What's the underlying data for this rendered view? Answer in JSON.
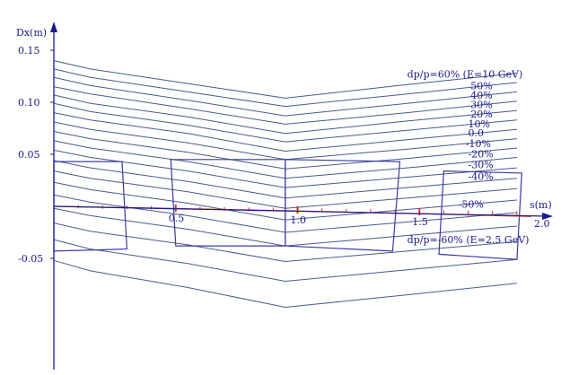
{
  "chart_data": {
    "type": "line",
    "ylabel": "Dx(m)",
    "xlabel": "s(m)",
    "xlim": [
      0,
      2.0
    ],
    "ylim": [
      -0.115,
      0.17
    ],
    "x_ticks": [
      0.5,
      1.0,
      1.5,
      2.0
    ],
    "x_tick_labels": [
      "0.5",
      "1.0",
      "1.5",
      "2.0"
    ],
    "y_ticks": [
      0.15,
      0.1,
      0.05,
      -0.05
    ],
    "y_tick_labels": [
      "0.15",
      "0.10",
      "0.05",
      "-0.05"
    ],
    "grid": false,
    "colors": {
      "curve": "#4a5a8c",
      "axis": "#1a1a8c",
      "magnet": "#3a3aa0",
      "beam": "#d03030"
    },
    "curve_x": [
      0,
      0.15,
      0.55,
      0.95,
      1.45,
      1.9
    ],
    "series": [
      {
        "name": "dp/p=60%  (E=10 GeV)",
        "values": [
          0.14,
          0.132,
          0.118,
          0.104,
          0.117,
          0.128
        ]
      },
      {
        "values": [
          0.132,
          0.124,
          0.11,
          0.096,
          0.108,
          0.119
        ]
      },
      {
        "values": [
          0.124,
          0.116,
          0.102,
          0.087,
          0.099,
          0.11
        ]
      },
      {
        "values": [
          0.115,
          0.108,
          0.094,
          0.079,
          0.09,
          0.101
        ]
      },
      {
        "values": [
          0.107,
          0.099,
          0.086,
          0.07,
          0.082,
          0.092
        ]
      },
      {
        "values": [
          0.099,
          0.091,
          0.078,
          0.062,
          0.073,
          0.083
        ]
      },
      {
        "values": [
          0.09,
          0.083,
          0.07,
          0.053,
          0.064,
          0.074
        ]
      },
      {
        "values": [
          0.081,
          0.074,
          0.061,
          0.045,
          0.055,
          0.065
        ]
      },
      {
        "values": [
          0.072,
          0.065,
          0.052,
          0.036,
          0.046,
          0.056
        ]
      },
      {
        "values": [
          0.063,
          0.056,
          0.043,
          0.027,
          0.037,
          0.047
        ]
      },
      {
        "values": [
          0.054,
          0.047,
          0.034,
          0.018,
          0.028,
          0.037
        ]
      },
      {
        "values": [
          0.044,
          0.037,
          0.024,
          0.008,
          0.018,
          0.027
        ]
      },
      {
        "values": [
          0.034,
          0.027,
          0.014,
          -0.002,
          0.008,
          0.017
        ]
      },
      {
        "values": [
          0.023,
          0.016,
          0.003,
          -0.013,
          -0.003,
          0.006
        ]
      },
      {
        "values": [
          0.011,
          0.004,
          -0.009,
          -0.025,
          -0.015,
          -0.006
        ]
      },
      {
        "values": [
          -0.002,
          -0.009,
          -0.022,
          -0.038,
          -0.028,
          -0.019
        ]
      },
      {
        "values": [
          -0.016,
          -0.024,
          -0.037,
          -0.053,
          -0.043,
          -0.034
        ]
      },
      {
        "values": [
          -0.032,
          -0.041,
          -0.055,
          -0.072,
          -0.061,
          -0.051
        ]
      },
      {
        "name": "dp/p=-60%  (E=2.5 GeV)",
        "values": [
          -0.052,
          -0.062,
          -0.078,
          -0.097,
          -0.085,
          -0.074
        ]
      }
    ],
    "curve_labels": [
      {
        "text": "dp/p=60%  (E=10 GeV)",
        "x": 1.45,
        "y": 0.127
      },
      {
        "text": "50%",
        "x": 1.71,
        "y": 0.116
      },
      {
        "text": "40%",
        "x": 1.71,
        "y": 0.107
      },
      {
        "text": "30%",
        "x": 1.71,
        "y": 0.098
      },
      {
        "text": "20%",
        "x": 1.71,
        "y": 0.089
      },
      {
        "text": "10%",
        "x": 1.7,
        "y": 0.0795
      },
      {
        "text": "0.0",
        "x": 1.7,
        "y": 0.0705
      },
      {
        "text": "-10%",
        "x": 1.69,
        "y": 0.0605
      },
      {
        "text": "-20%",
        "x": 1.7,
        "y": 0.0505
      },
      {
        "text": "-30%",
        "x": 1.7,
        "y": 0.04
      },
      {
        "text": "-40%",
        "x": 1.7,
        "y": 0.029
      },
      {
        "text": "-50%",
        "x": 1.66,
        "y": 0.002
      },
      {
        "text": "dp/p=-60%  (E=2.5 GeV)",
        "x": 1.45,
        "y": -0.032
      }
    ],
    "annotation_labels": [
      {
        "text": "-10%",
        "x": 1.69,
        "y": 0.0605
      }
    ]
  }
}
